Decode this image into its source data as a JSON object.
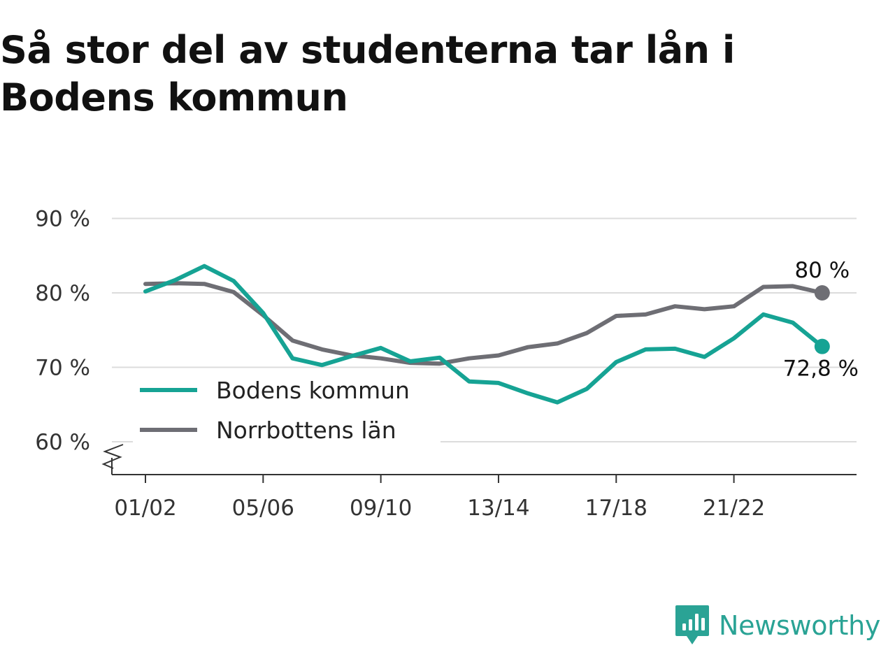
{
  "title": "Så stor del av studenterna tar lån i Bodens kommun",
  "brand": {
    "name": "Newsworthy",
    "icon": "newsworthy-logo-icon",
    "color": "#2aa395"
  },
  "chart_data": {
    "type": "line",
    "title": "Så stor del av studenterna tar lån i Bodens kommun",
    "xlabel": "",
    "ylabel": "",
    "x": [
      "01/02",
      "02/03",
      "03/04",
      "04/05",
      "05/06",
      "06/07",
      "07/08",
      "08/09",
      "09/10",
      "10/11",
      "11/12",
      "12/13",
      "13/14",
      "14/15",
      "15/16",
      "16/17",
      "17/18",
      "18/19",
      "19/20",
      "20/21",
      "21/22",
      "22/23",
      "23/24",
      "24/25"
    ],
    "x_tick_labels": [
      "01/02",
      "05/06",
      "09/10",
      "13/14",
      "17/18",
      "21/22"
    ],
    "y_ticks": [
      60,
      70,
      80,
      90
    ],
    "y_tick_labels": [
      "60 %",
      "70 %",
      "80 %",
      "90 %"
    ],
    "ylim": [
      56,
      90
    ],
    "y_axis_break": true,
    "grid": true,
    "legend_position": "bottom-left",
    "series": [
      {
        "name": "Bodens kommun",
        "color": "#16a394",
        "values": [
          80.2,
          81.7,
          83.6,
          81.6,
          77.3,
          71.2,
          70.3,
          71.5,
          72.6,
          70.8,
          71.3,
          68.1,
          67.9,
          66.5,
          65.3,
          67.1,
          70.7,
          72.4,
          72.5,
          71.4,
          73.9,
          77.1,
          76.0,
          72.8
        ],
        "end_label": "72,8 %"
      },
      {
        "name": "Norrbottens län",
        "color": "#6e6e74",
        "values": [
          81.2,
          81.3,
          81.2,
          80.1,
          77.0,
          73.6,
          72.4,
          71.6,
          71.2,
          70.6,
          70.5,
          71.2,
          71.6,
          72.7,
          73.2,
          74.6,
          76.9,
          77.1,
          78.2,
          77.8,
          78.2,
          80.8,
          80.9,
          80.0
        ],
        "end_label": "80 %"
      }
    ]
  }
}
